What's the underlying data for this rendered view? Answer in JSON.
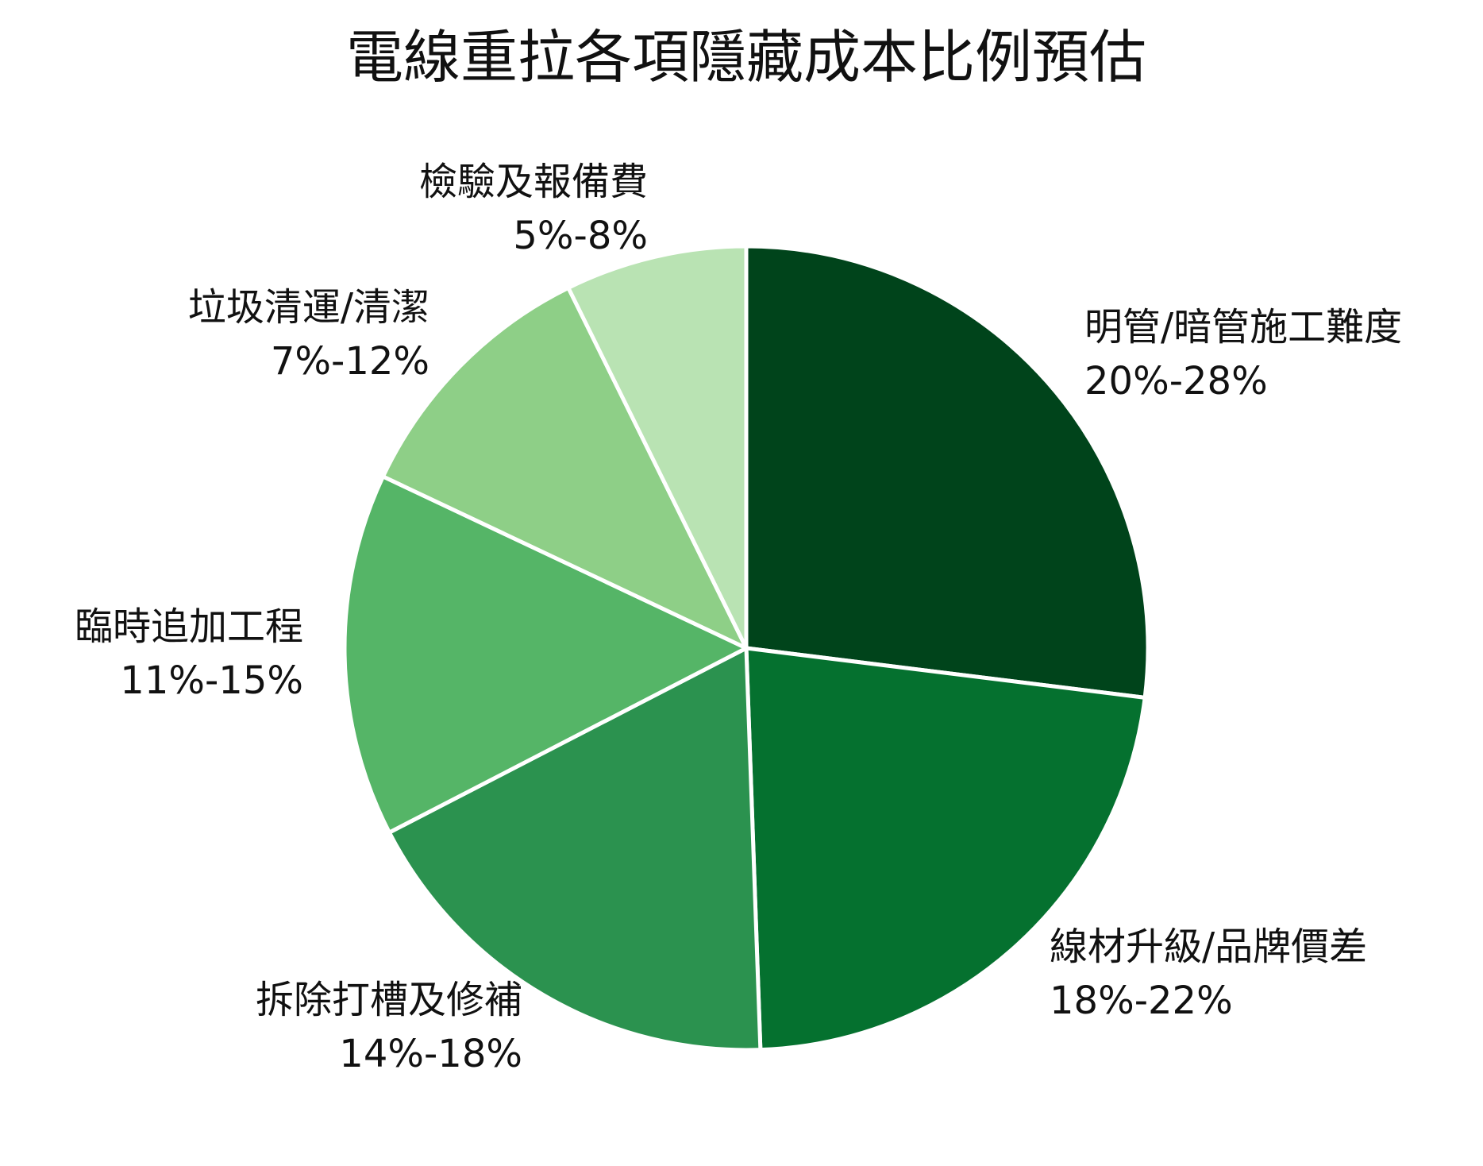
{
  "chart_data": {
    "type": "pie",
    "title": "電線重拉各項隱藏成本比例預估",
    "start_angle_deg": 0,
    "direction": "clockwise",
    "slice_border_color": "#ffffff",
    "slices": [
      {
        "label": "明管/暗管施工難度",
        "range": "20%-28%",
        "value": 24,
        "color": "#00441b"
      },
      {
        "label": "線材升級/品牌價差",
        "range": "18%-22%",
        "value": 20,
        "color": "#05712f"
      },
      {
        "label": "拆除打槽及修補",
        "range": "14%-18%",
        "value": 16,
        "color": "#2b924f"
      },
      {
        "label": "臨時追加工程",
        "range": "11%-15%",
        "value": 13,
        "color": "#55b567"
      },
      {
        "label": "垃圾清運/清潔",
        "range": "7%-12%",
        "value": 9.5,
        "color": "#8ecf87"
      },
      {
        "label": "檢驗及報備費",
        "range": "5%-8%",
        "value": 6.5,
        "color": "#b9e3b3"
      }
    ]
  }
}
